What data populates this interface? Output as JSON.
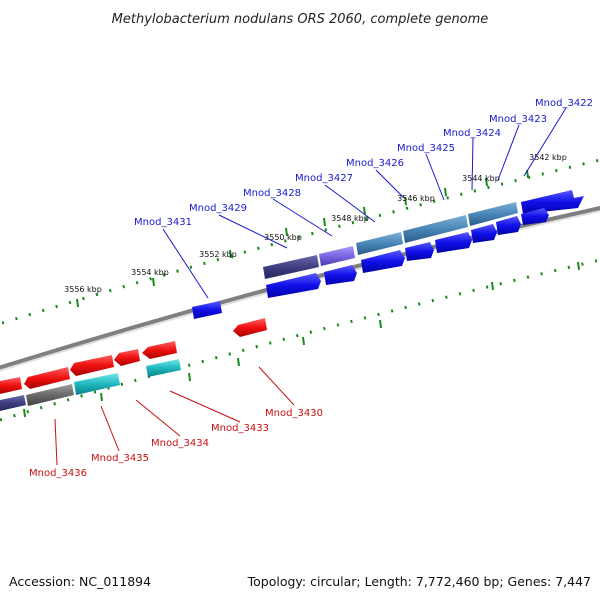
{
  "title": "Methylobacterium nodulans ORS 2060, complete genome",
  "footer": {
    "accession": "Accession: NC_011894",
    "summary": "Topology: circular; Length: 7,772,460 bp; Genes: 7,447"
  },
  "scale_ticks": [
    "3542 kbp",
    "3544 kbp",
    "3546 kbp",
    "3548 kbp",
    "3550 kbp",
    "3552 kbp",
    "3554 kbp",
    "3556 kbp"
  ],
  "genes": [
    {
      "label": "Mnod_3422",
      "strand": "forward"
    },
    {
      "label": "Mnod_3423",
      "strand": "forward"
    },
    {
      "label": "Mnod_3424",
      "strand": "forward"
    },
    {
      "label": "Mnod_3425",
      "strand": "forward"
    },
    {
      "label": "Mnod_3426",
      "strand": "forward"
    },
    {
      "label": "Mnod_3427",
      "strand": "forward"
    },
    {
      "label": "Mnod_3428",
      "strand": "forward"
    },
    {
      "label": "Mnod_3429",
      "strand": "forward"
    },
    {
      "label": "Mnod_3431",
      "strand": "forward"
    },
    {
      "label": "Mnod_3430",
      "strand": "reverse"
    },
    {
      "label": "Mnod_3433",
      "strand": "reverse"
    },
    {
      "label": "Mnod_3434",
      "strand": "reverse"
    },
    {
      "label": "Mnod_3435",
      "strand": "reverse"
    },
    {
      "label": "Mnod_3436",
      "strand": "reverse"
    }
  ],
  "colors": {
    "forward_gene": "#1010e0",
    "reverse_gene": "#e01010",
    "feature_steelblue": "#4a86b8",
    "feature_slate": "#4a4a8a",
    "feature_lavender": "#7a6ad8",
    "feature_cyan": "#20b8c0",
    "feature_gray": "#6a6a6a",
    "backbone": "#808080",
    "tick_marks": "#1a8a1a",
    "forward_label": "#1a1ad0",
    "reverse_label": "#c81010"
  }
}
